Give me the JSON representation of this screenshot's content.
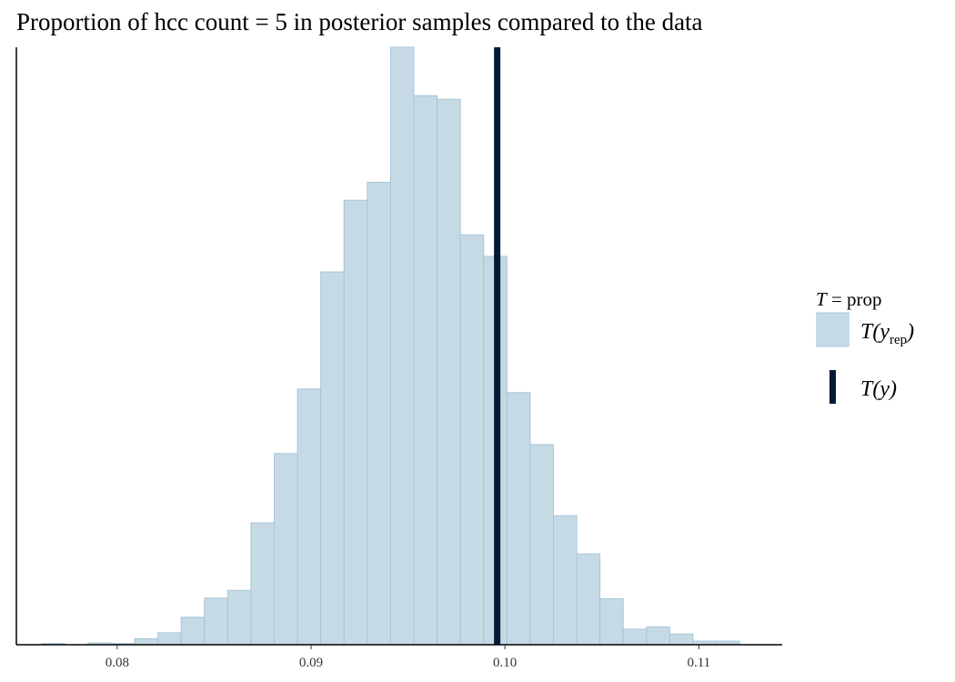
{
  "chart_data": {
    "type": "bar",
    "title": "Proportion of hcc count = 5 in posterior samples compared to the data",
    "xlabel": "",
    "ylabel": "",
    "xlim": [
      0.0748,
      0.1143
    ],
    "ylim": [
      0,
      1
    ],
    "bin_width": 0.0012,
    "bins": [
      {
        "x0": 0.0761,
        "x1": 0.0773,
        "value": 0.002
      },
      {
        "x0": 0.0773,
        "x1": 0.0785,
        "value": 0.0
      },
      {
        "x0": 0.0785,
        "x1": 0.0797,
        "value": 0.003
      },
      {
        "x0": 0.0797,
        "x1": 0.0809,
        "value": 0.002
      },
      {
        "x0": 0.0809,
        "x1": 0.0821,
        "value": 0.01
      },
      {
        "x0": 0.0821,
        "x1": 0.0833,
        "value": 0.02
      },
      {
        "x0": 0.0833,
        "x1": 0.0845,
        "value": 0.046
      },
      {
        "x0": 0.0845,
        "x1": 0.0857,
        "value": 0.078
      },
      {
        "x0": 0.0857,
        "x1": 0.0869,
        "value": 0.091
      },
      {
        "x0": 0.0869,
        "x1": 0.0881,
        "value": 0.204
      },
      {
        "x0": 0.0881,
        "x1": 0.0893,
        "value": 0.32
      },
      {
        "x0": 0.0893,
        "x1": 0.0905,
        "value": 0.428
      },
      {
        "x0": 0.0905,
        "x1": 0.0917,
        "value": 0.624
      },
      {
        "x0": 0.0917,
        "x1": 0.0929,
        "value": 0.744
      },
      {
        "x0": 0.0929,
        "x1": 0.0941,
        "value": 0.774
      },
      {
        "x0": 0.0941,
        "x1": 0.0953,
        "value": 1.0
      },
      {
        "x0": 0.0953,
        "x1": 0.0965,
        "value": 0.919
      },
      {
        "x0": 0.0965,
        "x1": 0.0977,
        "value": 0.913
      },
      {
        "x0": 0.0977,
        "x1": 0.0989,
        "value": 0.686
      },
      {
        "x0": 0.0989,
        "x1": 0.1001,
        "value": 0.65
      },
      {
        "x0": 0.1001,
        "x1": 0.1013,
        "value": 0.422
      },
      {
        "x0": 0.1013,
        "x1": 0.1025,
        "value": 0.335
      },
      {
        "x0": 0.1025,
        "x1": 0.1037,
        "value": 0.216
      },
      {
        "x0": 0.1037,
        "x1": 0.1049,
        "value": 0.152
      },
      {
        "x0": 0.1049,
        "x1": 0.1061,
        "value": 0.077
      },
      {
        "x0": 0.1061,
        "x1": 0.1073,
        "value": 0.026
      },
      {
        "x0": 0.1073,
        "x1": 0.1085,
        "value": 0.03
      },
      {
        "x0": 0.1085,
        "x1": 0.1097,
        "value": 0.018
      },
      {
        "x0": 0.1097,
        "x1": 0.1109,
        "value": 0.006
      },
      {
        "x0": 0.1109,
        "x1": 0.1121,
        "value": 0.006
      }
    ],
    "observed": 0.0996,
    "xticks": [
      0.08,
      0.09,
      0.1,
      0.11
    ],
    "xtick_labels": [
      "0.08",
      "0.09",
      "0.10",
      "0.11"
    ],
    "grid": false,
    "y_axis_ticks": false,
    "legend": {
      "position": "right",
      "title": "T = prop",
      "entries": [
        {
          "key": "yrep",
          "label": "T(y_rep)"
        },
        {
          "key": "y",
          "label": "T(y)"
        }
      ]
    },
    "colors": {
      "bar_fill": "#c6dae6",
      "bar_stroke": "#a9c5d8",
      "observed_line": "#021a36",
      "axis": "#000000"
    }
  }
}
